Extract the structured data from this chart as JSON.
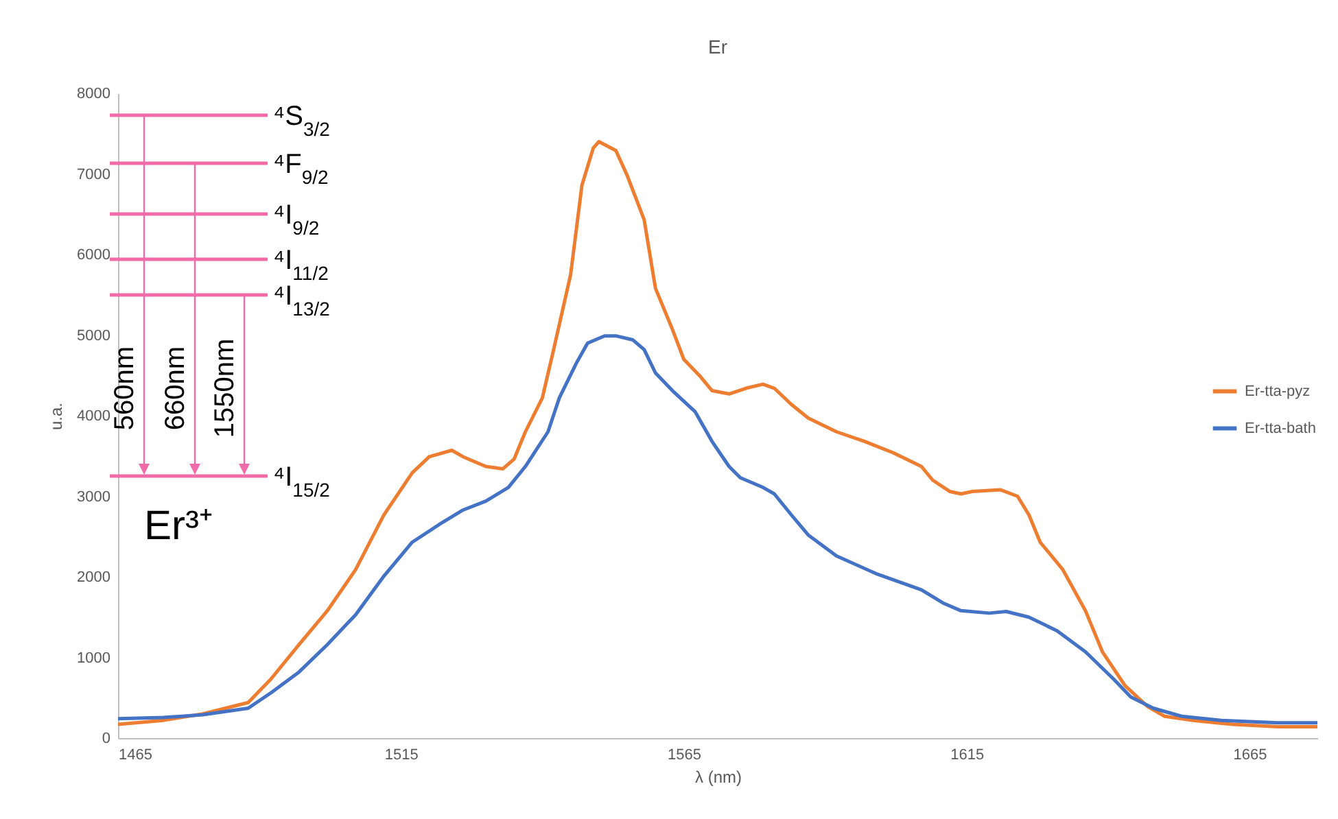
{
  "chart_data": {
    "type": "line",
    "title": "Er",
    "xlabel": "λ (nm)",
    "ylabel": "u.a.",
    "xlim": [
      1465,
      1677
    ],
    "xticks": [
      1465,
      1515,
      1565,
      1615,
      1665
    ],
    "ylim": [
      0,
      8000
    ],
    "yticks": [
      0,
      1000,
      2000,
      3000,
      4000,
      5000,
      6000,
      7000,
      8000
    ],
    "grid": false,
    "legend": "right",
    "marker": "none",
    "line_style": "solid",
    "annotations": [
      "⁴S$_{3/2}$",
      "⁴F$_{9/2}$",
      "⁴I$_{9/2}$",
      "⁴I$_{11/2}$",
      "⁴I$_{13/2}$",
      "⁴I$_{15/2}$",
      "560nm",
      "660nm",
      "1550nm",
      "Er³⁺"
    ],
    "series": [
      {
        "name": "Er-tta-pyz",
        "color": "#ed7d31",
        "x": [
          1465,
          1473,
          1480,
          1488,
          1492,
          1497,
          1502,
          1507,
          1512,
          1517,
          1520,
          1524,
          1526,
          1530,
          1533,
          1535,
          1537,
          1540,
          1542,
          1545,
          1547,
          1549,
          1550,
          1553,
          1555,
          1558,
          1560,
          1563,
          1565,
          1568,
          1570,
          1573,
          1576,
          1579,
          1581,
          1584,
          1587,
          1592,
          1597,
          1602,
          1607,
          1609,
          1612,
          1614,
          1616,
          1621,
          1624,
          1626,
          1628,
          1632,
          1636,
          1639,
          1643,
          1647,
          1650,
          1655,
          1662,
          1670,
          1677
        ],
        "values": [
          170,
          220,
          300,
          440,
          730,
          1160,
          1580,
          2090,
          2770,
          3290,
          3490,
          3570,
          3490,
          3370,
          3340,
          3460,
          3800,
          4220,
          4820,
          5750,
          6860,
          7320,
          7400,
          7290,
          6980,
          6430,
          5580,
          5070,
          4700,
          4480,
          4310,
          4270,
          4340,
          4390,
          4340,
          4140,
          3970,
          3800,
          3680,
          3540,
          3370,
          3200,
          3060,
          3030,
          3060,
          3080,
          3000,
          2770,
          2430,
          2090,
          1580,
          1070,
          650,
          390,
          270,
          220,
          170,
          140,
          140
        ]
      },
      {
        "name": "Er-tta-bath",
        "color": "#4472c4",
        "x": [
          1465,
          1473,
          1480,
          1488,
          1492,
          1497,
          1502,
          1507,
          1512,
          1517,
          1522,
          1526,
          1530,
          1534,
          1537,
          1541,
          1543,
          1546,
          1548,
          1551,
          1553,
          1556,
          1558,
          1560,
          1563,
          1567,
          1570,
          1573,
          1575,
          1579,
          1581,
          1584,
          1587,
          1592,
          1599,
          1607,
          1611,
          1614,
          1619,
          1622,
          1626,
          1631,
          1636,
          1641,
          1644,
          1648,
          1653,
          1660,
          1670,
          1677
        ],
        "values": [
          240,
          255,
          290,
          370,
          560,
          820,
          1160,
          1530,
          2010,
          2430,
          2660,
          2830,
          2940,
          3110,
          3370,
          3800,
          4220,
          4650,
          4900,
          4990,
          4990,
          4940,
          4820,
          4530,
          4310,
          4050,
          3680,
          3370,
          3230,
          3110,
          3030,
          2770,
          2520,
          2260,
          2040,
          1840,
          1670,
          1580,
          1550,
          1570,
          1500,
          1330,
          1070,
          730,
          510,
          370,
          270,
          220,
          190,
          190
        ]
      }
    ]
  }
}
